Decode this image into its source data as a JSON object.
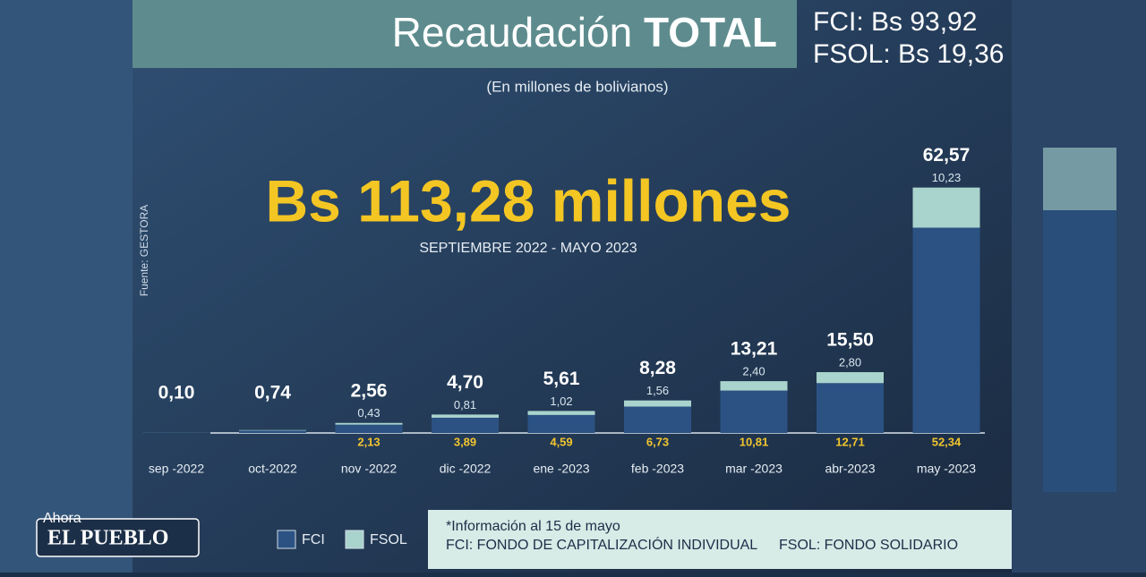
{
  "chart_data": {
    "type": "stacked-bar",
    "title_light": "Recaudación",
    "title_bold": "TOTAL",
    "summary": [
      "FCI: Bs 93,92",
      "FSOL: Bs 19,36"
    ],
    "subtitle": "(En millones de bolivianos)",
    "headline": "Bs 113,28 millones",
    "period": "SEPTIEMBRE 2022 - MAYO 2023",
    "source": "Fuente: GESTORA",
    "categories": [
      "sep -2022",
      "oct-2022",
      "nov -2022",
      "dic -2022",
      "ene -2023",
      "feb -2023",
      "mar -2023",
      "abr-2023",
      "may -2023"
    ],
    "totals": [
      0.1,
      0.74,
      2.56,
      4.7,
      5.61,
      8.28,
      13.21,
      15.5,
      62.57
    ],
    "total_labels": [
      "0,10",
      "0,74",
      "2,56",
      "4,70",
      "5,61",
      "8,28",
      "13,21",
      "15,50",
      "62,57"
    ],
    "series": [
      {
        "name": "FCI",
        "color": "#2b5283",
        "label_color": "#f2c52e",
        "values": [
          0.08,
          0.6,
          2.13,
          3.89,
          4.59,
          6.73,
          10.81,
          12.71,
          52.34
        ],
        "value_labels": [
          null,
          null,
          "2,13",
          "3,89",
          "4,59",
          "6,73",
          "10,81",
          "12,71",
          "52,34"
        ]
      },
      {
        "name": "FSOL",
        "color": "#a9d3cd",
        "label_color": "#d8e6ee",
        "values": [
          0.02,
          0.14,
          0.43,
          0.81,
          1.02,
          1.56,
          2.4,
          2.8,
          10.23
        ],
        "value_labels": [
          null,
          null,
          "0,43",
          "0,81",
          "1,02",
          "1,56",
          "2,40",
          "2,80",
          "10,23"
        ]
      }
    ],
    "ylim": [
      0,
      65
    ],
    "notes": [
      "*Información al 15 de mayo",
      "FCI: FONDO DE CAPITALIZACIÓN INDIVIDUAL",
      "FSOL: FONDO SOLIDARIO"
    ],
    "logo": [
      "Ahora",
      "EL PUEBLO"
    ]
  }
}
